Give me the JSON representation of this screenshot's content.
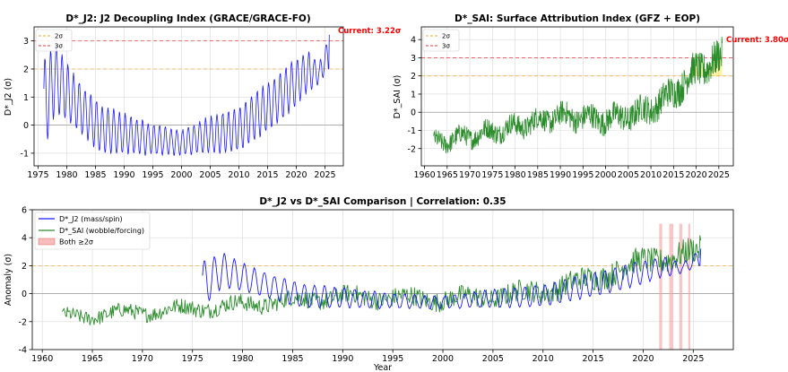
{
  "chart_data": [
    {
      "id": "j2",
      "type": "line",
      "title": "D*_J2: J2 Decoupling Index (GRACE/GRACE-FO)",
      "xlabel": "",
      "ylabel": "D*_J2 (σ)",
      "xlim": [
        1974.3,
        2028.2
      ],
      "ylim": [
        -1.45,
        3.5
      ],
      "xticks": [
        1975,
        1980,
        1985,
        1990,
        1995,
        2000,
        2005,
        2010,
        2015,
        2020,
        2025
      ],
      "yticks": [
        -1,
        0,
        1,
        2,
        3
      ],
      "grid": true,
      "legend_position": "top-left",
      "thresholds": [
        {
          "label": "2σ",
          "value": 2,
          "color": "#f0a830",
          "dash": "4,3"
        },
        {
          "label": "3σ",
          "value": 3,
          "color": "#e8333c",
          "dash": "4,3"
        }
      ],
      "annotation": {
        "text": "Current: 3.22σ",
        "color": "#ff0000"
      },
      "series": [
        {
          "name": "D*_J2",
          "color": "#1a1aff",
          "x_start": 1976.0,
          "x_end": 2025.8,
          "oscillation_period_years": 1.0,
          "envelope_upper": [
            [
              1976,
              2.3
            ],
            [
              1978,
              2.9
            ],
            [
              1980,
              2.2
            ],
            [
              1983,
              1.3
            ],
            [
              1986,
              0.7
            ],
            [
              1990,
              0.4
            ],
            [
              1995,
              0.0
            ],
            [
              2000,
              -0.2
            ],
            [
              2005,
              0.3
            ],
            [
              2010,
              0.6
            ],
            [
              2013,
              1.2
            ],
            [
              2016,
              1.6
            ],
            [
              2019,
              2.2
            ],
            [
              2022,
              2.6
            ],
            [
              2024,
              2.2
            ],
            [
              2025.8,
              3.22
            ]
          ],
          "envelope_lower": [
            [
              1976,
              -1.05
            ],
            [
              1978,
              0.5
            ],
            [
              1980,
              0.2
            ],
            [
              1983,
              -0.4
            ],
            [
              1986,
              -1.0
            ],
            [
              1990,
              -1.0
            ],
            [
              1995,
              -1.05
            ],
            [
              2000,
              -1.05
            ],
            [
              2005,
              -1.0
            ],
            [
              2010,
              -0.9
            ],
            [
              2013,
              -0.5
            ],
            [
              2016,
              0.0
            ],
            [
              2019,
              0.5
            ],
            [
              2022,
              1.2
            ],
            [
              2024,
              1.5
            ],
            [
              2025.8,
              2.0
            ]
          ]
        }
      ]
    },
    {
      "id": "sai",
      "type": "line",
      "title": "D*_SAI: Surface Attribution Index (GFZ + EOP)",
      "xlabel": "",
      "ylabel": "D*_SAI (σ)",
      "xlim": [
        1959.3,
        2028.2
      ],
      "ylim": [
        -2.95,
        4.7
      ],
      "xticks": [
        1960,
        1965,
        1970,
        1975,
        1980,
        1985,
        1990,
        1995,
        2000,
        2005,
        2010,
        2015,
        2020,
        2025
      ],
      "yticks": [
        -2,
        -1,
        0,
        1,
        2,
        3,
        4
      ],
      "grid": true,
      "legend_position": "top-left",
      "thresholds": [
        {
          "label": "2σ",
          "value": 2,
          "color": "#f0a830",
          "dash": "4,3"
        },
        {
          "label": "3σ",
          "value": 3,
          "color": "#e8333c",
          "dash": "4,3"
        }
      ],
      "annotation": {
        "text": "Current: 3.80σ",
        "color": "#ff0000"
      },
      "fill_between": {
        "y_low": 2,
        "x_range": [
          2017,
          2025.8
        ],
        "color": "#ffd700",
        "alpha": 0.35
      },
      "series": [
        {
          "name": "D*_SAI",
          "color": "#2a8c2a",
          "x_start": 1962.0,
          "x_end": 2025.8,
          "trend": [
            [
              1962,
              -1.7
            ],
            [
              1970,
              -1.3
            ],
            [
              1980,
              -0.8
            ],
            [
              1990,
              -0.2
            ],
            [
              2000,
              -0.4
            ],
            [
              2005,
              -0.2
            ],
            [
              2010,
              0.2
            ],
            [
              2015,
              1.1
            ],
            [
              2020,
              2.3
            ],
            [
              2025.8,
              3.0
            ]
          ],
          "noise_amplitude": [
            [
              1962,
              0.5
            ],
            [
              2000,
              0.7
            ],
            [
              2010,
              0.8
            ],
            [
              2025.8,
              1.0
            ]
          ],
          "final_value": 3.8
        }
      ]
    },
    {
      "id": "compare",
      "type": "line",
      "title": "D*_J2 vs D*_SAI Comparison  |  Correlation: 0.35",
      "xlabel": "Year",
      "ylabel": "Anomaly (σ)",
      "xlim": [
        1959.0,
        2029.0
      ],
      "ylim": [
        -4,
        6
      ],
      "xticks": [
        1960,
        1965,
        1970,
        1975,
        1980,
        1985,
        1990,
        1995,
        2000,
        2005,
        2010,
        2015,
        2020,
        2025
      ],
      "yticks": [
        -4,
        -2,
        0,
        2,
        4,
        6
      ],
      "grid": true,
      "legend_position": "top-left",
      "thresholds": [
        {
          "label": "",
          "value": 2,
          "color": "#f0a830",
          "dash": "4,3"
        }
      ],
      "legend": [
        "D*_J2 (mass/spin)",
        "D*_SAI (wobble/forcing)",
        "Both ≥2σ"
      ],
      "both_exceed_periods": [
        [
          2021.6,
          2021.9
        ],
        [
          2022.6,
          2023.0
        ],
        [
          2023.6,
          2023.9
        ],
        [
          2024.5,
          2024.7
        ]
      ],
      "both_exceed_top": 5,
      "both_color": "#f4a0a0",
      "series": [
        {
          "name": "D*_J2 (mass/spin)",
          "color": "#1a1aff",
          "ref": "j2"
        },
        {
          "name": "D*_SAI (wobble/forcing)",
          "color": "#2a8c2a",
          "ref": "sai"
        }
      ]
    }
  ]
}
